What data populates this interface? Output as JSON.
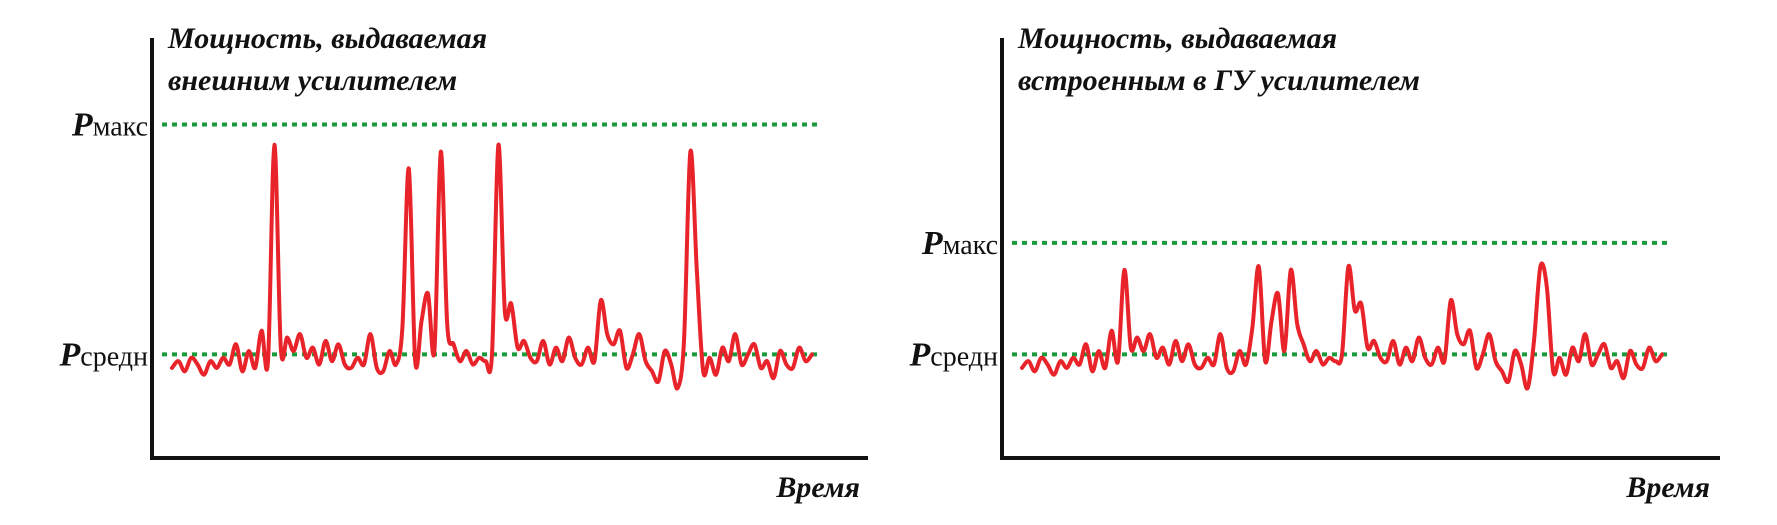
{
  "chart_data": [
    {
      "type": "line",
      "title_lines": [
        "Мощность, выдаваемая",
        "внешним усилителем"
      ],
      "xlabel": "Время",
      "ylabel": "",
      "ylim": [
        0,
        100
      ],
      "grid": false,
      "reference_lines": [
        {
          "symbol": "P",
          "label": "макс",
          "value": 88,
          "color": "#1a9a3a"
        },
        {
          "symbol": "P",
          "label": "средн",
          "value": 20,
          "color": "#1a9a3a"
        }
      ],
      "series": [
        {
          "color": "#e8242a",
          "x": [
            0,
            2,
            4,
            6,
            8,
            10,
            12,
            14,
            16,
            18,
            20,
            22,
            24,
            26,
            28,
            30,
            32,
            34,
            36,
            38,
            40,
            42,
            44,
            46,
            48,
            50,
            52,
            54,
            56,
            58,
            60,
            62,
            64,
            66,
            68,
            70,
            72,
            74,
            76,
            78,
            80,
            82,
            84,
            86,
            88,
            90,
            92,
            94,
            96,
            98,
            100,
            102,
            104,
            106,
            108,
            110,
            112,
            114,
            116,
            118,
            120,
            122,
            124,
            126,
            128,
            130,
            132,
            134,
            136,
            138,
            140,
            142,
            144,
            146,
            148,
            150,
            152,
            154,
            156,
            158,
            160,
            162,
            164,
            166,
            168,
            170,
            172,
            174,
            176,
            178,
            180,
            182,
            184,
            186,
            188,
            190,
            192,
            194,
            196,
            198,
            200
          ],
          "y": [
            16,
            18,
            15,
            19,
            17,
            14,
            18,
            16,
            19,
            17,
            23,
            15,
            21,
            16,
            27,
            18,
            82,
            22,
            25,
            21,
            26,
            19,
            22,
            17,
            24,
            18,
            23,
            17,
            16,
            19,
            17,
            26,
            16,
            15,
            21,
            17,
            28,
            75,
            18,
            30,
            38,
            21,
            80,
            29,
            23,
            18,
            21,
            17,
            19,
            18,
            20,
            82,
            33,
            35,
            22,
            24,
            19,
            18,
            24,
            17,
            22,
            18,
            25,
            19,
            17,
            22,
            18,
            36,
            26,
            23,
            27,
            16,
            20,
            26,
            18,
            15,
            12,
            21,
            17,
            10,
            24,
            80,
            45,
            15,
            19,
            14,
            22,
            18,
            26,
            17,
            20,
            23,
            16,
            18,
            13,
            21,
            17,
            16,
            22,
            18,
            20
          ]
        }
      ]
    },
    {
      "type": "line",
      "title_lines": [
        "Мощность, выдаваемая",
        "встроенным в ГУ усилителем"
      ],
      "xlabel": "Время",
      "ylabel": "",
      "ylim": [
        0,
        100
      ],
      "grid": false,
      "reference_lines": [
        {
          "symbol": "P",
          "label": "макс",
          "value": 53,
          "color": "#1a9a3a"
        },
        {
          "symbol": "P",
          "label": "средн",
          "value": 20,
          "color": "#1a9a3a"
        }
      ],
      "series": [
        {
          "color": "#e8242a",
          "x": [
            0,
            2,
            4,
            6,
            8,
            10,
            12,
            14,
            16,
            18,
            20,
            22,
            24,
            26,
            28,
            30,
            32,
            34,
            36,
            38,
            40,
            42,
            44,
            46,
            48,
            50,
            52,
            54,
            56,
            58,
            60,
            62,
            64,
            66,
            68,
            70,
            72,
            74,
            76,
            78,
            80,
            82,
            84,
            86,
            88,
            90,
            92,
            94,
            96,
            98,
            100,
            102,
            104,
            106,
            108,
            110,
            112,
            114,
            116,
            118,
            120,
            122,
            124,
            126,
            128,
            130,
            132,
            134,
            136,
            138,
            140,
            142,
            144,
            146,
            148,
            150,
            152,
            154,
            156,
            158,
            160,
            162,
            164,
            166,
            168,
            170,
            172,
            174,
            176,
            178,
            180,
            182,
            184,
            186,
            188,
            190,
            192,
            194,
            196,
            198,
            200
          ],
          "y": [
            16,
            18,
            15,
            19,
            17,
            14,
            18,
            16,
            19,
            17,
            23,
            15,
            21,
            16,
            27,
            18,
            45,
            22,
            25,
            21,
            26,
            19,
            22,
            17,
            24,
            18,
            23,
            17,
            16,
            19,
            17,
            26,
            16,
            15,
            21,
            17,
            28,
            46,
            18,
            30,
            38,
            21,
            45,
            29,
            23,
            18,
            21,
            17,
            19,
            18,
            20,
            46,
            33,
            35,
            22,
            24,
            19,
            18,
            24,
            17,
            22,
            18,
            25,
            19,
            17,
            22,
            18,
            36,
            26,
            23,
            27,
            16,
            20,
            26,
            18,
            15,
            12,
            21,
            17,
            10,
            24,
            46,
            40,
            15,
            19,
            14,
            22,
            18,
            26,
            17,
            20,
            23,
            16,
            18,
            13,
            21,
            17,
            16,
            22,
            18,
            20
          ]
        }
      ]
    }
  ]
}
